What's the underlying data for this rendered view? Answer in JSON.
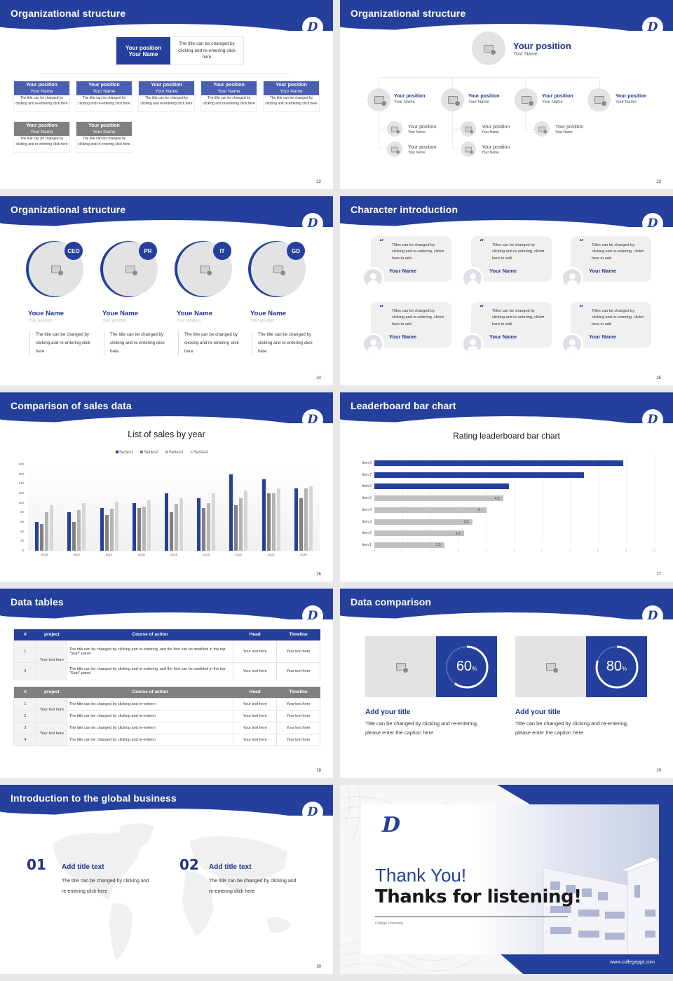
{
  "theme": {
    "primary": "#243f9c",
    "dark_text": "#1f3488",
    "gray_header": "#808080",
    "placeholder_gray": "#e4e3e3",
    "page_bg": "#e8e8e8"
  },
  "logo": {
    "glyph": "D"
  },
  "slides": {
    "s22": {
      "title": "Organizational structure",
      "page": "22",
      "top": {
        "position": "Your position",
        "name": "Your Name",
        "desc": "The title can be changed by clicking and re-entering click here"
      },
      "cards": [
        {
          "position": "Your position",
          "name": "Your Name",
          "desc": "The title can be changed by clicking and re-entering click here",
          "style": "blue"
        },
        {
          "position": "Your position",
          "name": "Your Name",
          "desc": "The title can be changed by clicking and re-entering click here",
          "style": "blue"
        },
        {
          "position": "Your position",
          "name": "Your Name",
          "desc": "The title can be changed by clicking and re-entering click here",
          "style": "blue"
        },
        {
          "position": "Your position",
          "name": "Your Name",
          "desc": "The title can be changed by clicking and re-entering click here",
          "style": "blue"
        },
        {
          "position": "Your position",
          "name": "Your Name",
          "desc": "The title can be changed by clicking and re-entering click here",
          "style": "blue"
        },
        {
          "position": "Your position",
          "name": "Your Name",
          "desc": "The title can be changed by clicking and re-entering click here",
          "style": "gray"
        },
        {
          "position": "Your position",
          "name": "Your Name",
          "desc": "The title can be changed by clicking and re-entering click here",
          "style": "gray"
        }
      ]
    },
    "s23": {
      "title": "Organizational structure",
      "page": "23",
      "top": {
        "position": "Your position",
        "name": "Your Name"
      },
      "level2": [
        {
          "position": "Your position",
          "name": "Your Name"
        },
        {
          "position": "Your position",
          "name": "Your Name"
        },
        {
          "position": "Your position",
          "name": "Your Name"
        },
        {
          "position": "Your position",
          "name": "Your Name"
        }
      ],
      "level3": [
        {
          "position": "Your position",
          "name": "Your Name"
        },
        {
          "position": "Your position",
          "name": "Your Name"
        },
        {
          "position": "Your position",
          "name": "Your Name"
        },
        {
          "position": "Your position",
          "name": "Your Name"
        },
        {
          "position": "Your position",
          "name": "Your Name"
        }
      ]
    },
    "s24": {
      "title": "Organizational structure",
      "page": "24",
      "members": [
        {
          "badge": "CEO",
          "name": "Youe Name",
          "position": "Your position",
          "desc": "The title can be changed by clicking and re-entering click here"
        },
        {
          "badge": "PR",
          "name": "Youe Name",
          "position": "Your position",
          "desc": "The title can be changed by clicking and re-entering click here"
        },
        {
          "badge": "IT",
          "name": "Youe Name",
          "position": "Your position",
          "desc": "The title can be changed by clicking and re-entering click here"
        },
        {
          "badge": "GD",
          "name": "Youe Name",
          "position": "Your position",
          "desc": "The title can be changed by clicking and re-entering click here"
        }
      ]
    },
    "s25": {
      "title": "Character introduction",
      "page": "25",
      "quote_open": "“",
      "quote_close": "”",
      "people": [
        {
          "quote": "Titles can be changed by clicking and re-entering, click here to add",
          "name": "Your Name"
        },
        {
          "quote": "Titles can be changed by clicking and re-entering, click here to add",
          "name": "Your Name"
        },
        {
          "quote": "Titles can be changed by clicking and re-entering, click here to add",
          "name": "Your Name"
        },
        {
          "quote": "Titles can be changed by clicking and re-entering, click here to add",
          "name": "Your Name"
        },
        {
          "quote": "Titles can be changed by clicking and re-entering, click here to add",
          "name": "Your Name"
        },
        {
          "quote": "Titles can be changed by clicking and re-entering, click here to add",
          "name": "Your Name"
        }
      ]
    },
    "s26": {
      "title": "Comparison of sales data",
      "page": "26"
    },
    "s27": {
      "title": "Leaderboard bar chart",
      "page": "27"
    },
    "s28": {
      "title": "Data tables",
      "page": "28",
      "table1": {
        "headers": [
          "#",
          "project",
          "Course of action",
          "Head",
          "Timeline"
        ],
        "group_label": "Your text here",
        "rows": [
          {
            "num": "1",
            "action": "The title can be changed by clicking and re-entering, and the font can be modified in the top \"Start\" panel",
            "head": "Your text here",
            "timeline": "Your text here"
          },
          {
            "num": "2",
            "action": "The title can be changed by clicking and re-entering, and the font can be modified in the top \"Start\" panel",
            "head": "Your text here",
            "timeline": "Your text here"
          }
        ]
      },
      "table2": {
        "headers": [
          "#",
          "project",
          "Course of action",
          "Head",
          "Timeline"
        ],
        "group_labels": [
          "Your text here",
          "Your text here"
        ],
        "rows": [
          {
            "num": "1",
            "action": "The title can be changed by clicking and re-entenn",
            "head": "Your text here",
            "timeline": "Your text here"
          },
          {
            "num": "2",
            "action": "The title can be changed by clicking and re-entenn",
            "head": "Your text here",
            "timeline": "Your text here"
          },
          {
            "num": "3",
            "action": "The title can be changed by clicking and re-entenn",
            "head": "Your text here",
            "timeline": "Your text here"
          },
          {
            "num": "4",
            "action": "The title can be changed by clicking and re-entenn",
            "head": "Your text here",
            "timeline": "Your text here"
          }
        ]
      }
    },
    "s29": {
      "title": "Data comparison",
      "page": "29",
      "items": [
        {
          "percent": 60,
          "value": "60",
          "unit": "%",
          "title": "Add your title",
          "desc": "Title can be changed by clicking and re-entering, please enter the caption here"
        },
        {
          "percent": 80,
          "value": "80",
          "unit": "%",
          "title": "Add your title",
          "desc": "Title can be changed by clicking and re-entering, please enter the caption here"
        }
      ]
    },
    "s30": {
      "title": "Introduction to the global business",
      "page": "30",
      "items": [
        {
          "num": "01",
          "title": "Add title text",
          "desc": "The title can be changed by clicking and re-entering click here"
        },
        {
          "num": "02",
          "title": "Add title text",
          "desc": "The title can be changed by clicking and re-entering click here"
        }
      ]
    },
    "s31": {
      "thanks": "Thank You!",
      "subtitle": "Thanks for listening!",
      "institution": "College University",
      "url": "www.collegeppt.com"
    }
  },
  "chart_data": [
    {
      "type": "bar",
      "title": "List of sales by year",
      "categories": [
        "2010",
        "2012",
        "2014",
        "2016",
        "2018",
        "2020",
        "2022",
        "2024",
        "2026"
      ],
      "series": [
        {
          "name": "Series1",
          "color": "#243f9c",
          "values": [
            60,
            80,
            90,
            100,
            120,
            110,
            160,
            150,
            130
          ]
        },
        {
          "name": "Series2",
          "color": "#808080",
          "values": [
            55,
            60,
            75,
            90,
            80,
            90,
            95,
            120,
            110
          ]
        },
        {
          "name": "Series3",
          "color": "#b4b4b4",
          "values": [
            80,
            85,
            88,
            92,
            98,
            100,
            110,
            120,
            130
          ]
        },
        {
          "name": "Series4",
          "color": "#d6d6d6",
          "values": [
            95,
            99,
            102,
            105,
            110,
            120,
            126,
            130,
            135
          ]
        }
      ],
      "yticks": [
        "0",
        "20",
        "40",
        "60",
        "80",
        "100",
        "120",
        "140",
        "160",
        "180"
      ],
      "ylim": [
        0,
        180
      ],
      "xlabel": "",
      "ylabel": "",
      "legend_position": "top",
      "grid": false
    },
    {
      "type": "bar",
      "orientation": "horizontal",
      "title": "Rating leaderboard bar chart",
      "categories": [
        "Item 8",
        "Item 7",
        "Item 6",
        "Item 5",
        "Item 4",
        "Item 3",
        "Item 2",
        "Item 1"
      ],
      "values": [
        8.9,
        7.5,
        4.8,
        4.6,
        4,
        3.5,
        3.2,
        2.5
      ],
      "data_labels": [
        "",
        "",
        "",
        "4.6",
        "4",
        "3.5",
        "3.2",
        "2.5"
      ],
      "highlight_color": "#243f9c",
      "base_color": "#c0c0c0",
      "xticks": [
        "0",
        "1",
        "2",
        "3",
        "4",
        "5",
        "6",
        "7",
        "8",
        "9",
        "10"
      ],
      "xlim": [
        0,
        10
      ],
      "grid": true
    }
  ]
}
